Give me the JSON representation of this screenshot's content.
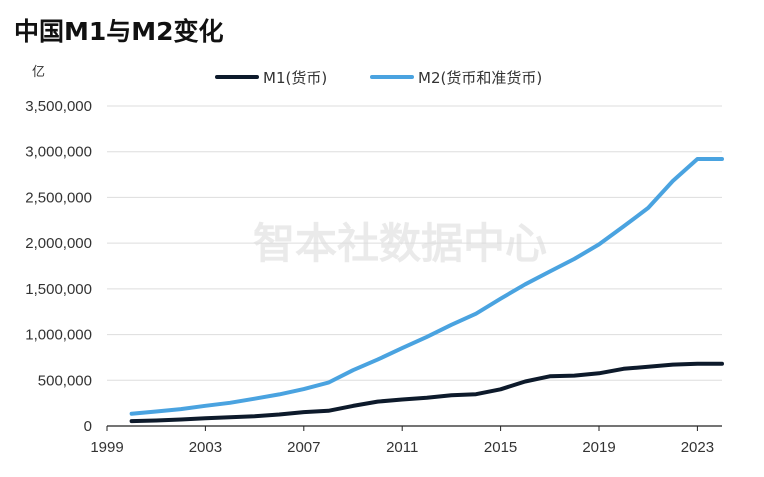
{
  "chart_data": {
    "type": "line",
    "title": "中国M1与M2变化",
    "ylabel": "亿",
    "xlabel": "",
    "ylim": [
      0,
      3500000
    ],
    "xlim": [
      1999,
      2024
    ],
    "x_ticks": [
      1999,
      2003,
      2007,
      2011,
      2015,
      2019,
      2023
    ],
    "y_ticks": [
      0,
      500000,
      1000000,
      1500000,
      2000000,
      2500000,
      3000000,
      3500000
    ],
    "y_tick_labels": [
      "0",
      "500,000",
      "1,000,000",
      "1,500,000",
      "2,000,000",
      "2,500,000",
      "3,000,000",
      "3,500,000"
    ],
    "legend_position": "top-center",
    "watermark": "智本社数据中心",
    "x": [
      2000,
      2001,
      2002,
      2003,
      2004,
      2005,
      2006,
      2007,
      2008,
      2009,
      2010,
      2011,
      2012,
      2013,
      2014,
      2015,
      2016,
      2017,
      2018,
      2019,
      2020,
      2021,
      2022,
      2023,
      2024
    ],
    "series": [
      {
        "name": "M1(货币)",
        "color": "#0d1a2b",
        "values": [
          53147,
          59871,
          70881,
          84118,
          95970,
          107278,
          126035,
          152560,
          166217,
          220002,
          266621,
          289848,
          308664,
          337291,
          348056,
          400953,
          486557,
          543790,
          551686,
          576009,
          625581,
          647443,
          671675,
          680543,
          680000
        ]
      },
      {
        "name": "M2(货币和准货币)",
        "color": "#4aa3e0",
        "values": [
          134610,
          158302,
          185007,
          221223,
          254107,
          298756,
          345604,
          403442,
          475167,
          610225,
          725852,
          851591,
          974149,
          1106525,
          1228375,
          1392278,
          1550067,
          1690235,
          1827689,
          1986489,
          2182900,
          2385900,
          2680000,
          2920000,
          2920000
        ]
      }
    ]
  }
}
